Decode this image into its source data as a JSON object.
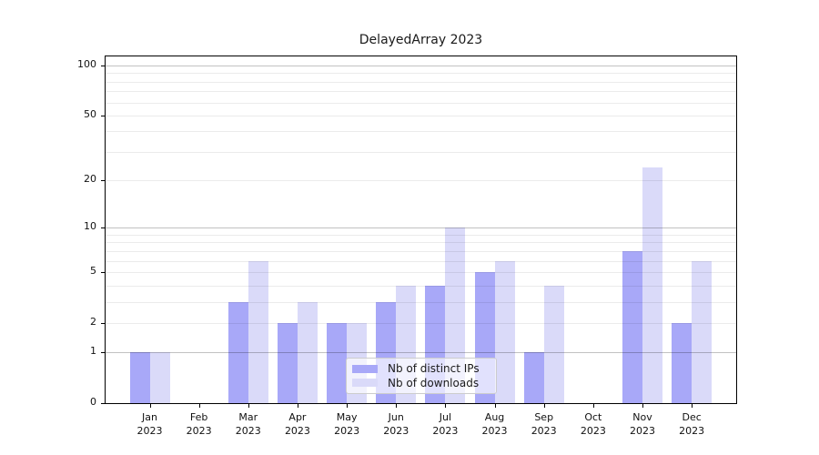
{
  "title": "DelayedArray 2023",
  "chart_data": {
    "type": "bar",
    "title": "DelayedArray 2023",
    "categories": [
      "Jan 2023",
      "Feb 2023",
      "Mar 2023",
      "Apr 2023",
      "May 2023",
      "Jun 2023",
      "Jul 2023",
      "Aug 2023",
      "Sep 2023",
      "Oct 2023",
      "Nov 2023",
      "Dec 2023"
    ],
    "x_tick_labels": [
      {
        "month": "Jan",
        "year": "2023"
      },
      {
        "month": "Feb",
        "year": "2023"
      },
      {
        "month": "Mar",
        "year": "2023"
      },
      {
        "month": "Apr",
        "year": "2023"
      },
      {
        "month": "May",
        "year": "2023"
      },
      {
        "month": "Jun",
        "year": "2023"
      },
      {
        "month": "Jul",
        "year": "2023"
      },
      {
        "month": "Aug",
        "year": "2023"
      },
      {
        "month": "Sep",
        "year": "2023"
      },
      {
        "month": "Oct",
        "year": "2023"
      },
      {
        "month": "Nov",
        "year": "2023"
      },
      {
        "month": "Dec",
        "year": "2023"
      }
    ],
    "series": [
      {
        "name": "Nb of distinct IPs",
        "color": "#a8a8f8",
        "values": [
          1,
          0,
          3,
          2,
          2,
          3,
          4,
          5,
          1,
          0,
          7,
          2
        ]
      },
      {
        "name": "Nb of downloads",
        "color": "#dadaf9",
        "values": [
          1,
          0,
          6,
          3,
          2,
          4,
          10,
          6,
          4,
          0,
          24,
          6
        ]
      }
    ],
    "xlabel": "",
    "ylabel": "",
    "yscale": "log1p",
    "ylim": [
      0,
      100
    ],
    "ytick_values": [
      100,
      50,
      20,
      10,
      5,
      2,
      1,
      0
    ],
    "ytick_labels": [
      "100",
      "50",
      "20",
      "10",
      "5",
      "2",
      "1",
      "0"
    ],
    "minor_gridlines": [
      2,
      3,
      4,
      5,
      6,
      7,
      8,
      9,
      20,
      30,
      40,
      50,
      60,
      70,
      80,
      90
    ],
    "major_gridlines": [
      1,
      10,
      100
    ],
    "grid": true,
    "legend_position": "lower center"
  },
  "legend": {
    "items": [
      {
        "label": "Nb of distinct IPs"
      },
      {
        "label": "Nb of downloads"
      }
    ]
  }
}
